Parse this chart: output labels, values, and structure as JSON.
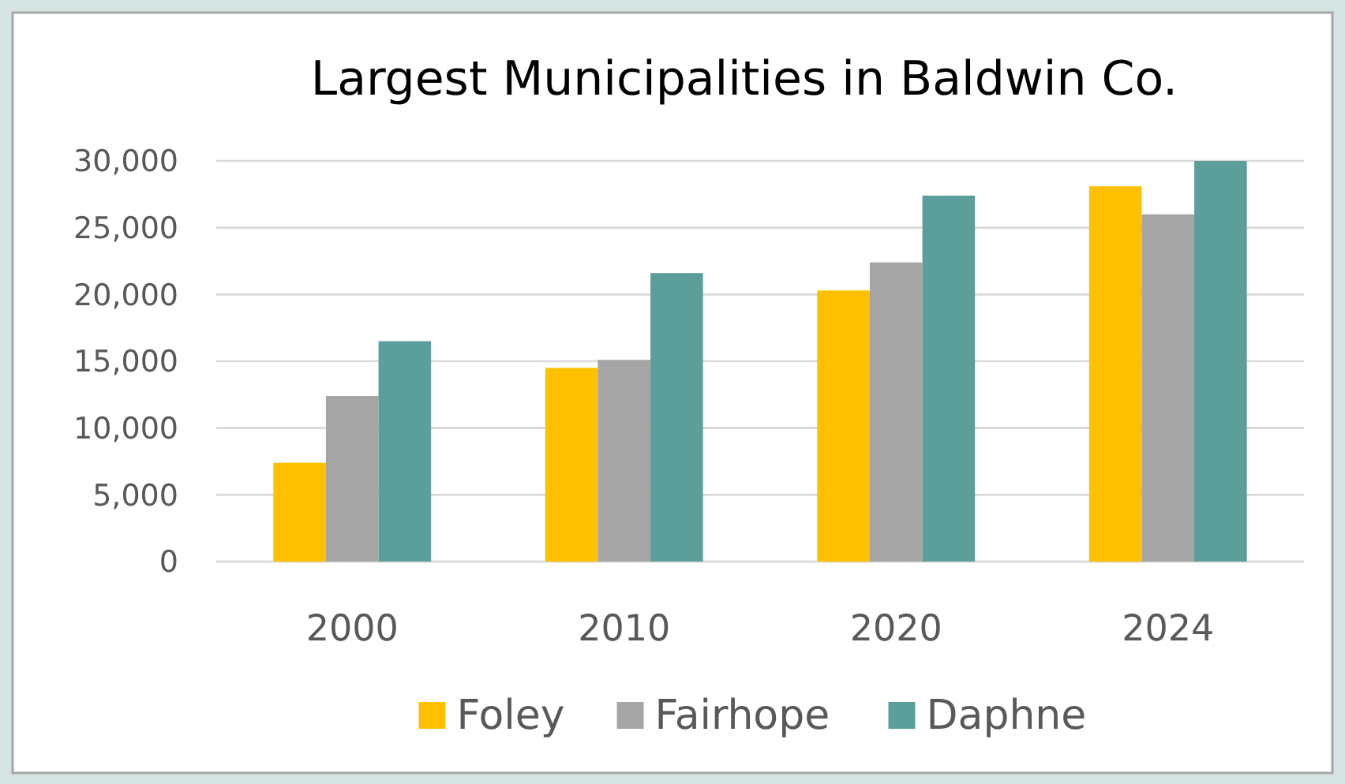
{
  "chart_data": {
    "type": "bar",
    "title": "Largest Municipalities in Baldwin Co.",
    "categories": [
      "2000",
      "2010",
      "2020",
      "2024"
    ],
    "series": [
      {
        "name": "Foley",
        "color": "#ffc000",
        "values": [
          7400,
          14500,
          20300,
          28100
        ]
      },
      {
        "name": "Fairhope",
        "color": "#a5a5a5",
        "values": [
          12400,
          15100,
          22400,
          26000
        ]
      },
      {
        "name": "Daphne",
        "color": "#5b9e9a",
        "values": [
          16500,
          21600,
          27400,
          30000
        ]
      }
    ],
    "ylim": [
      0,
      30000
    ],
    "yticks": [
      {
        "value": 0,
        "label": "0"
      },
      {
        "value": 5000,
        "label": "5,000"
      },
      {
        "value": 10000,
        "label": "10,000"
      },
      {
        "value": 15000,
        "label": "15,000"
      },
      {
        "value": 20000,
        "label": "20,000"
      },
      {
        "value": 25000,
        "label": "25,000"
      },
      {
        "value": 30000,
        "label": "30,000"
      }
    ],
    "grid": "y",
    "legend": "bottom"
  }
}
